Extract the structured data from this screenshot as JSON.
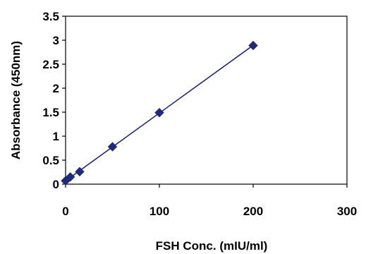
{
  "chart_data": {
    "type": "scatter",
    "title": "",
    "xlabel": "FSH Conc. (mIU/ml)",
    "ylabel": "Absorbance (450nm)",
    "xlim": [
      0,
      300
    ],
    "ylim": [
      0,
      3.5
    ],
    "x_ticks": [
      0,
      100,
      200,
      300
    ],
    "y_ticks": [
      0,
      0.5,
      1,
      1.5,
      2,
      2.5,
      3,
      3.5
    ],
    "x_tick_labels": [
      "0",
      "100",
      "200",
      "300"
    ],
    "y_tick_labels": [
      "0",
      "0.5",
      "1",
      "1.5",
      "2",
      "2.5",
      "3",
      "3.5"
    ],
    "grid": false,
    "legend": "none",
    "marker": "diamond",
    "trendline": "linear",
    "colors": {
      "marker": "#1f2a7a",
      "line": "#1f2a7a",
      "axis": "#000000"
    },
    "series": [
      {
        "x": [
          0,
          5,
          15,
          50,
          100,
          200
        ],
        "y": [
          0.07,
          0.15,
          0.26,
          0.78,
          1.49,
          2.89
        ]
      }
    ]
  }
}
